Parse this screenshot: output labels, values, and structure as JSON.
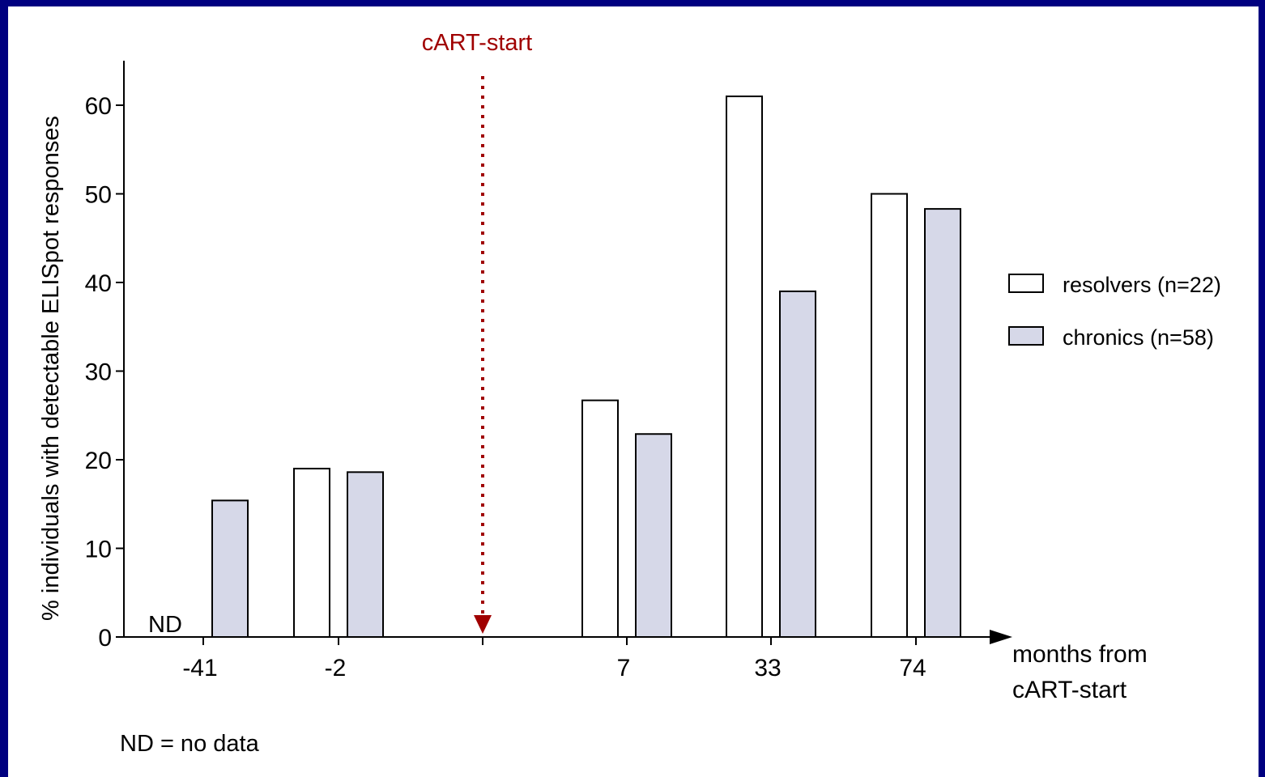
{
  "colors": {
    "frame": "#000080",
    "resolvers_fill": "#ffffff",
    "chronics_fill": "#d6d8e8",
    "cart_marker": "#a00000"
  },
  "chart_data": {
    "type": "bar",
    "categories": [
      "-41",
      "-2",
      "7",
      "33",
      "74"
    ],
    "series": [
      {
        "name": "resolvers (n=22)",
        "values": [
          null,
          19,
          26.7,
          61,
          50
        ]
      },
      {
        "name": "chronics (n=58)",
        "values": [
          15.4,
          18.6,
          22.9,
          39,
          48.3
        ]
      }
    ],
    "ylabel": "% individuals with detectable ELISpot responses",
    "xlabel": "months from\ncART-start",
    "xlabel_lines": [
      "months from",
      "cART-start"
    ],
    "ylim": [
      0,
      65
    ],
    "yticks": [
      0,
      10,
      20,
      30,
      40,
      50,
      60
    ],
    "legend_position": "right",
    "marker": {
      "label": "cART-start",
      "between": [
        "-2",
        "7"
      ]
    },
    "missing_label": "ND",
    "footnote": "ND = no data"
  }
}
